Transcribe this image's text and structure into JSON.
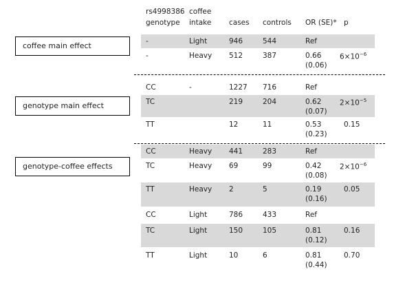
{
  "labels": [
    "coffee main effect",
    "genotype main effect",
    "genotype-coffee effects"
  ],
  "header": {
    "genotype": [
      "rs4998386",
      "genotype"
    ],
    "intake": [
      "coffee",
      "intake"
    ],
    "cases": "cases",
    "controls": "controls",
    "or": "OR (SE)*",
    "p": "p"
  },
  "rows": [
    {
      "genotype": "-",
      "intake": "Light",
      "cases": "946",
      "controls": "544",
      "or": "Ref"
    },
    {
      "genotype": "-",
      "intake": "Heavy",
      "cases": "512",
      "controls": "387",
      "or": "0.66",
      "se": "(0.06)",
      "p": {
        "base": "6×10",
        "exp": "−6"
      }
    },
    {
      "genotype": "CC",
      "intake": "-",
      "cases": "1227",
      "controls": "716",
      "or": "Ref"
    },
    {
      "genotype": "TC",
      "cases": "219",
      "controls": "204",
      "or": "0.62",
      "se": "(0.07)",
      "p": {
        "base": "2×10",
        "exp": "−5"
      }
    },
    {
      "genotype": "TT",
      "cases": "12",
      "controls": "11",
      "or": "0.53",
      "se": "(0.23)",
      "p": "0.15"
    },
    {
      "genotype": "CC",
      "intake": "Heavy",
      "cases": "441",
      "controls": "283",
      "or": "Ref"
    },
    {
      "genotype": "TC",
      "intake": "Heavy",
      "cases": "69",
      "controls": "99",
      "or": "0.42",
      "se": "(0.08)",
      "p": {
        "base": "2×10",
        "exp": "−6"
      }
    },
    {
      "genotype": "TT",
      "intake": "Heavy",
      "cases": "2",
      "controls": "5",
      "or": "0.19",
      "se": "(0.16)",
      "p": "0.05"
    },
    {
      "genotype": "CC",
      "intake": "Light",
      "cases": "786",
      "controls": "433",
      "or": "Ref"
    },
    {
      "genotype": "TC",
      "intake": "Light",
      "cases": "150",
      "controls": "105",
      "or": "0.81",
      "se": "(0.12)",
      "p": "0.16"
    },
    {
      "genotype": "TT",
      "intake": "Light",
      "cases": "10",
      "controls": "6",
      "or": "0.81",
      "se": "(0.44)",
      "p": "0.70"
    }
  ]
}
